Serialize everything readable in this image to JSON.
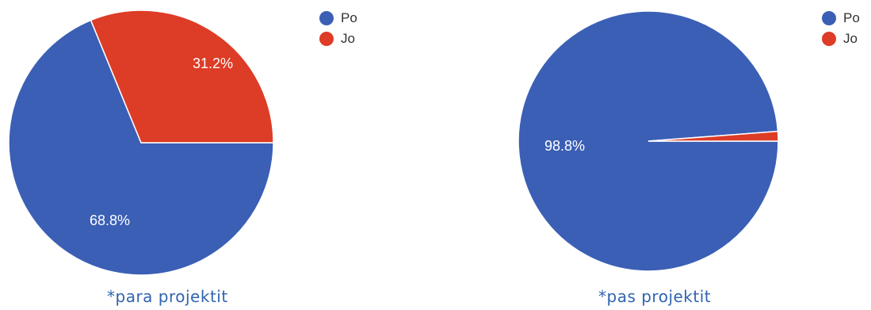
{
  "chart_data": [
    {
      "type": "pie",
      "title": "",
      "caption": "*para projektit",
      "categories": [
        "Po",
        "Jo"
      ],
      "values": [
        68.8,
        31.2
      ],
      "colors": [
        "#3b5fb5",
        "#dd3c26"
      ],
      "labels": [
        "68.8%",
        "31.2%"
      ],
      "legend": "top-right"
    },
    {
      "type": "pie",
      "title": "",
      "caption": "*pas projektit",
      "categories": [
        "Po",
        "Jo"
      ],
      "values": [
        98.8,
        1.2
      ],
      "colors": [
        "#3b5fb5",
        "#dd3c26"
      ],
      "labels": [
        "98.8%",
        ""
      ],
      "legend": "top-right"
    }
  ]
}
